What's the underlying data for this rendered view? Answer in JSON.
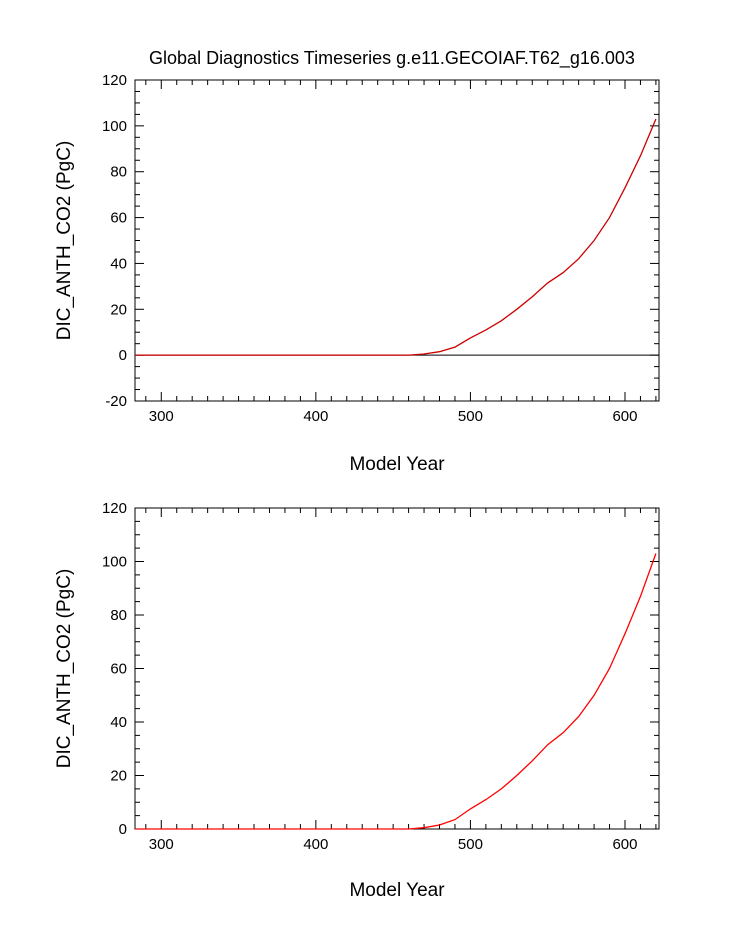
{
  "title": "Global Diagnostics Timeseries g.e11.GECOIAF.T62_g16.003",
  "chart_data": [
    {
      "type": "line",
      "xlabel": "Model Year",
      "ylabel": "DIC_ANTH_CO2 (PgC)",
      "xlim": [
        283,
        622
      ],
      "ylim": [
        -20,
        120
      ],
      "xticks": [
        "300",
        "400",
        "500",
        "600"
      ],
      "yticks": [
        "-20",
        "0",
        "20",
        "40",
        "60",
        "80",
        "100",
        "120"
      ],
      "reference_line_y": 0,
      "series": [
        {
          "color": "#cc0000",
          "x": [
            283,
            460,
            470,
            480,
            490,
            500,
            510,
            520,
            530,
            540,
            550,
            560,
            570,
            580,
            590,
            600,
            610,
            620
          ],
          "y": [
            0,
            0,
            0.5,
            1.5,
            3.5,
            7.5,
            11,
            15,
            20,
            25.5,
            31.5,
            36,
            42,
            50,
            60,
            73,
            87,
            103
          ]
        }
      ]
    },
    {
      "type": "line",
      "xlabel": "Model Year",
      "ylabel": "DIC_ANTH_CO2 (PgC)",
      "xlim": [
        283,
        622
      ],
      "ylim": [
        0,
        120
      ],
      "xticks": [
        "300",
        "400",
        "500",
        "600"
      ],
      "yticks": [
        "0",
        "20",
        "40",
        "60",
        "80",
        "100",
        "120"
      ],
      "series": [
        {
          "color": "#ff0000",
          "x": [
            283,
            460,
            470,
            480,
            490,
            500,
            510,
            520,
            530,
            540,
            550,
            560,
            570,
            580,
            590,
            600,
            610,
            620
          ],
          "y": [
            0,
            0,
            0.5,
            1.5,
            3.5,
            7.5,
            11,
            15,
            20,
            25.5,
            31.5,
            36,
            42,
            50,
            60,
            73,
            87,
            103
          ]
        }
      ]
    }
  ]
}
